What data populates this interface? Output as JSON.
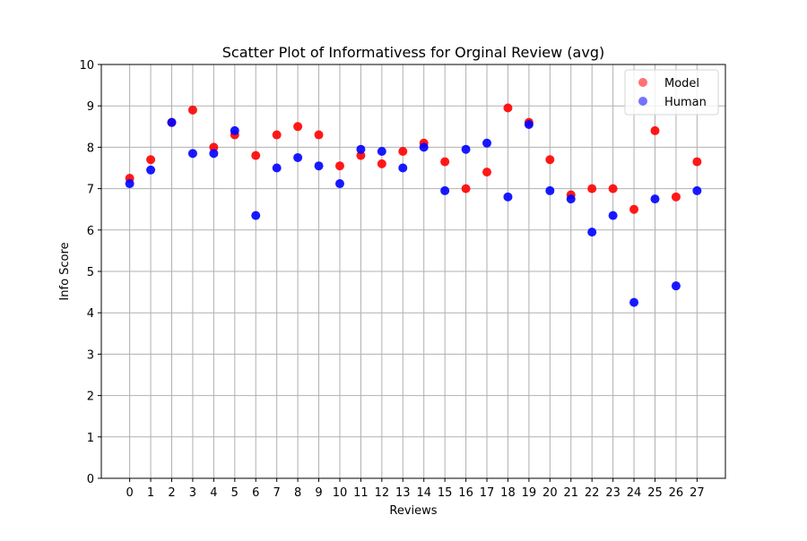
{
  "chart_data": {
    "type": "scatter",
    "title": "Scatter Plot of Informativess for Orginal Review (avg)",
    "xlabel": "Reviews",
    "ylabel": "Info Score",
    "xlim": [
      -1.35,
      28.35
    ],
    "ylim": [
      0,
      10
    ],
    "x_ticks": [
      0,
      1,
      2,
      3,
      4,
      5,
      6,
      7,
      8,
      9,
      10,
      11,
      12,
      13,
      14,
      15,
      16,
      17,
      18,
      19,
      20,
      21,
      22,
      23,
      24,
      25,
      26,
      27
    ],
    "y_ticks": [
      0,
      1,
      2,
      3,
      4,
      5,
      6,
      7,
      8,
      9,
      10
    ],
    "grid": true,
    "legend_position": "top-right",
    "series": [
      {
        "name": "Model",
        "color": "#ff0000",
        "x": [
          0,
          1,
          2,
          3,
          4,
          5,
          6,
          7,
          8,
          9,
          10,
          11,
          12,
          13,
          14,
          15,
          16,
          17,
          18,
          19,
          20,
          21,
          22,
          23,
          24,
          25,
          26,
          27
        ],
        "values": [
          7.25,
          7.7,
          8.6,
          8.9,
          8.0,
          8.3,
          7.8,
          8.3,
          8.5,
          8.3,
          7.55,
          7.8,
          7.6,
          7.9,
          8.1,
          7.65,
          7.0,
          7.4,
          8.95,
          8.6,
          7.7,
          6.85,
          7.0,
          7.0,
          6.5,
          8.4,
          6.8,
          7.65
        ]
      },
      {
        "name": "Human",
        "color": "#0000ff",
        "x": [
          0,
          1,
          2,
          3,
          4,
          5,
          6,
          7,
          8,
          9,
          10,
          11,
          12,
          13,
          14,
          15,
          16,
          17,
          18,
          19,
          20,
          21,
          22,
          23,
          24,
          25,
          26,
          27
        ],
        "values": [
          7.12,
          7.45,
          8.6,
          7.85,
          7.85,
          8.4,
          6.35,
          7.5,
          7.75,
          7.55,
          7.12,
          7.95,
          7.9,
          7.5,
          8.0,
          6.95,
          7.95,
          8.1,
          6.8,
          8.55,
          6.95,
          6.75,
          5.95,
          6.35,
          4.25,
          6.75,
          4.65,
          6.95
        ]
      }
    ]
  }
}
